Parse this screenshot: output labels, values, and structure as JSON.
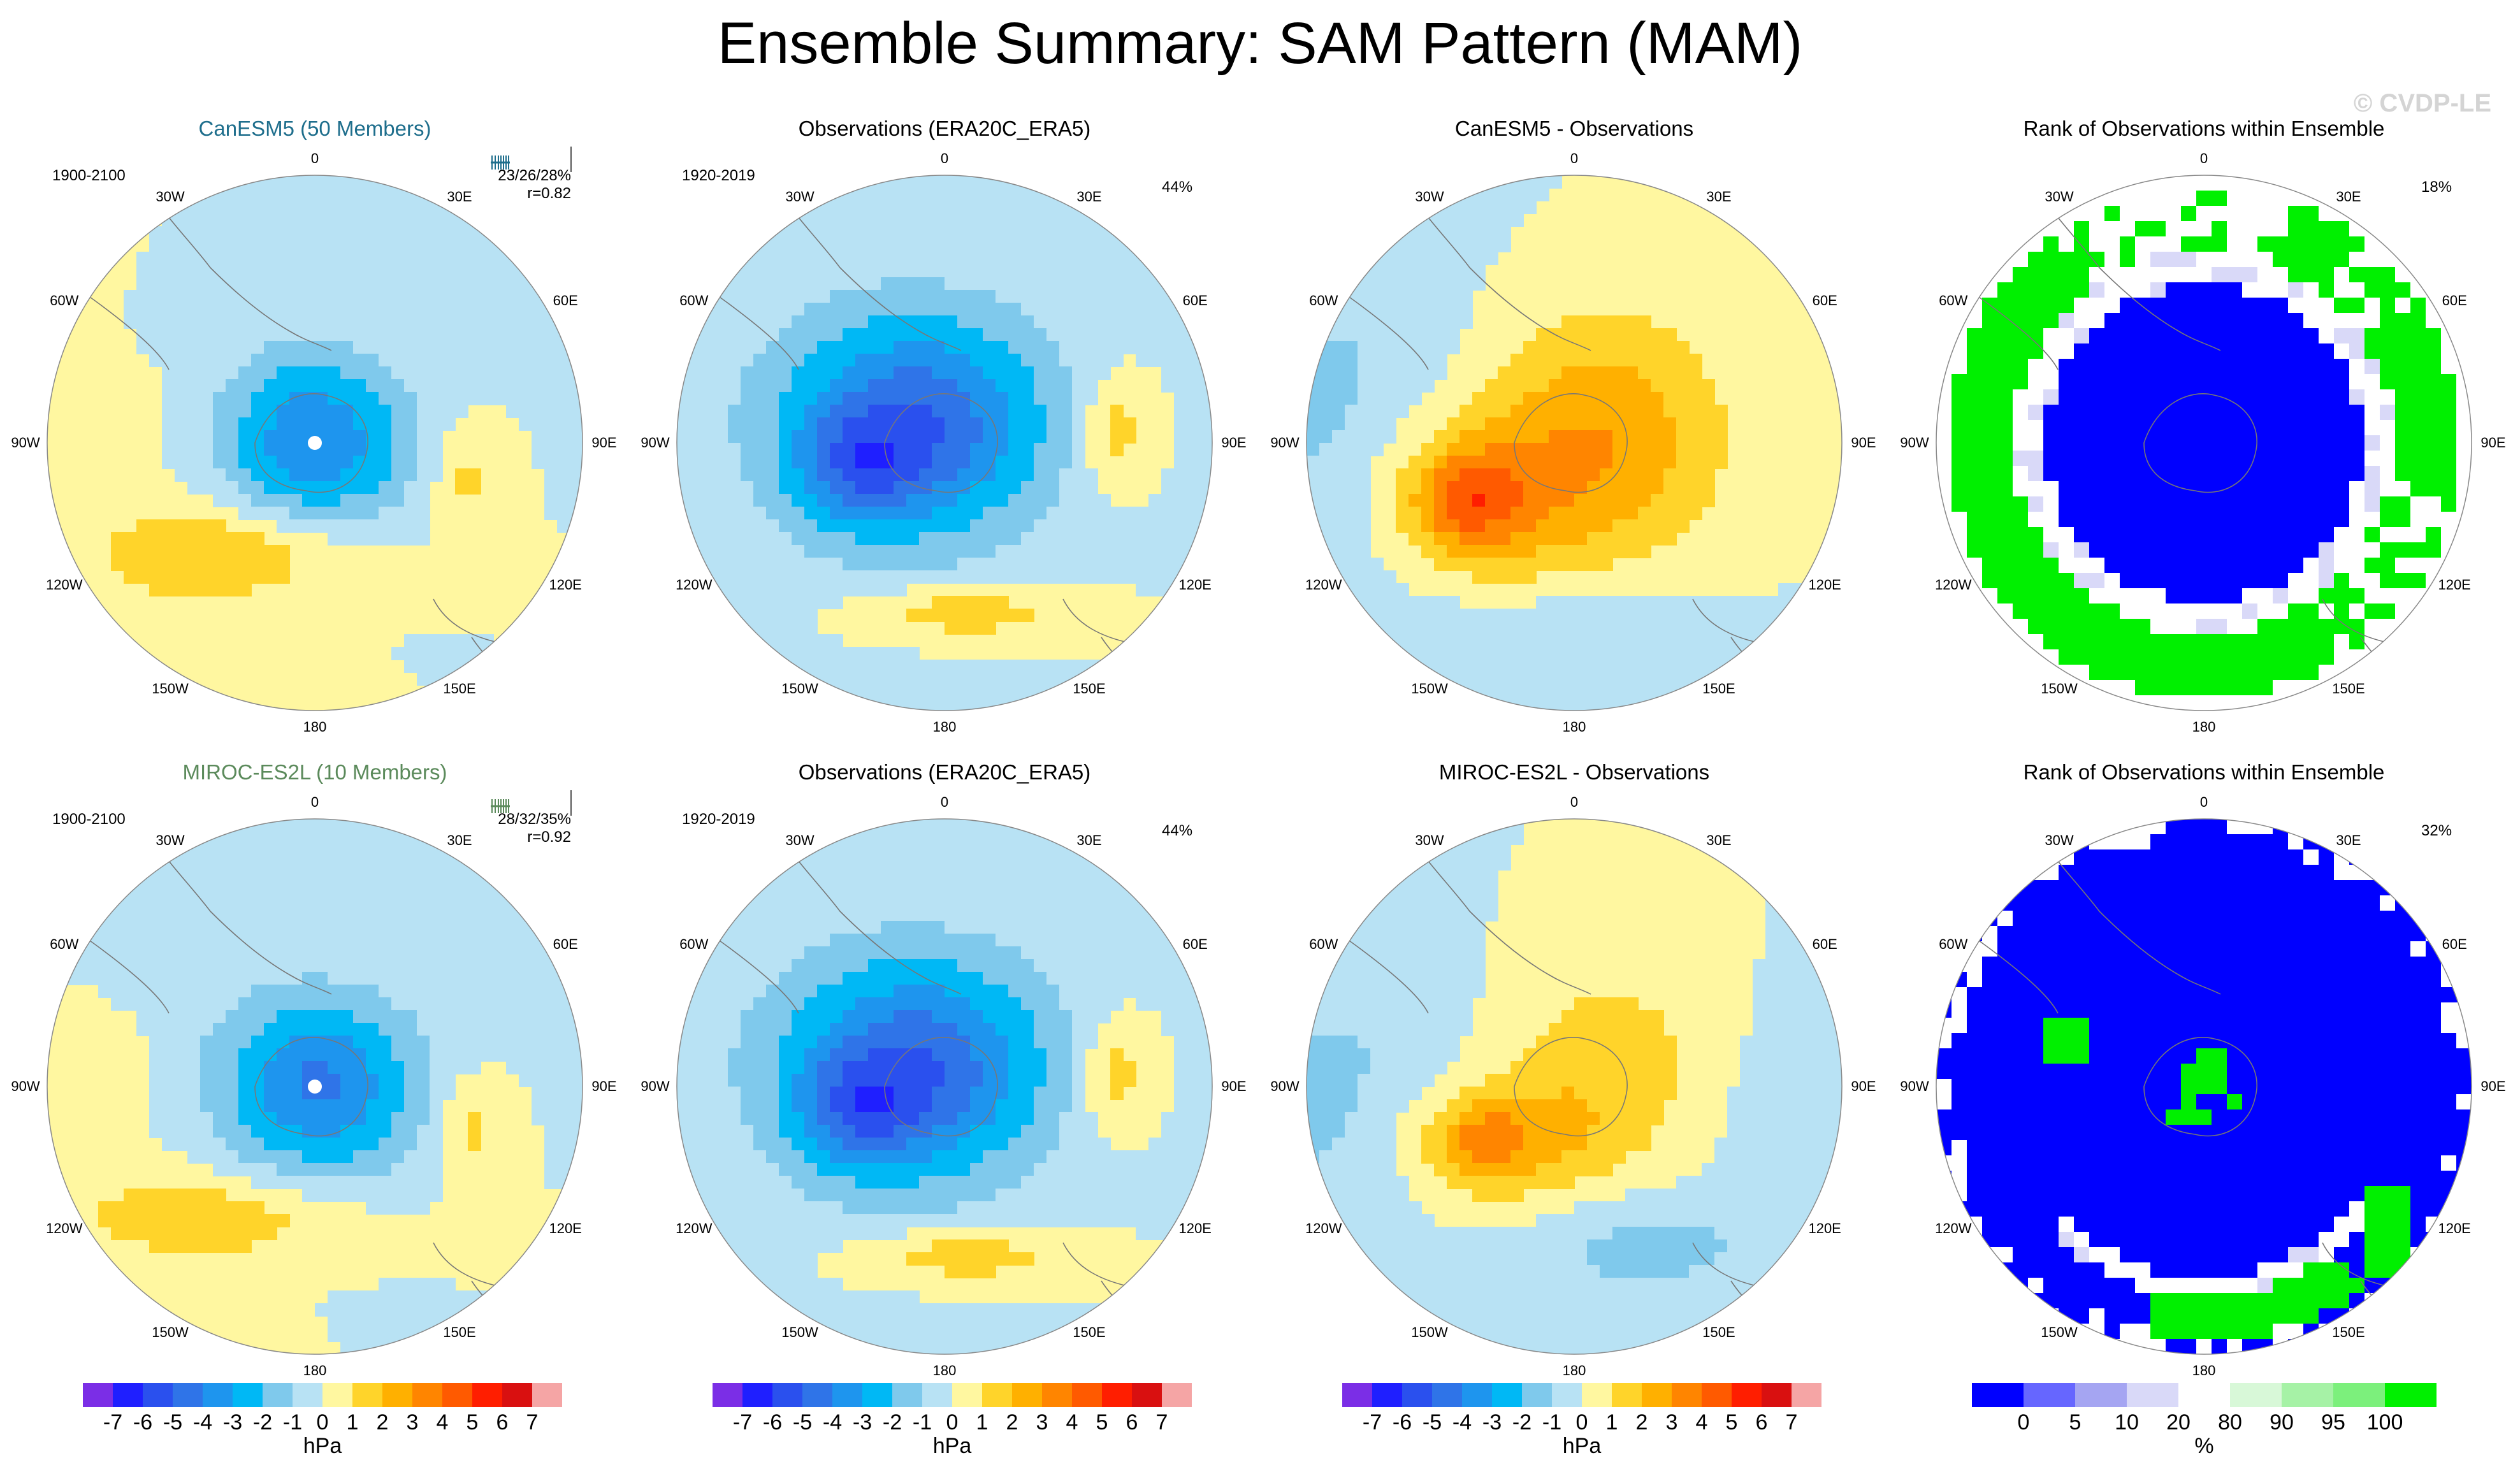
{
  "title": "Ensemble Summary: SAM Pattern (MAM)",
  "watermark": "© CVDP-LE",
  "lon_labels": [
    "0",
    "30E",
    "60E",
    "90E",
    "120E",
    "150E",
    "180",
    "150W",
    "120W",
    "90W",
    "60W",
    "30W"
  ],
  "panels": [
    {
      "title": "CanESM5 (50 Members)",
      "title_color": "#1e6e8c",
      "period": "1900-2100",
      "stat1": "23/26/28%",
      "stat2": "r=0.82",
      "kind": "model"
    },
    {
      "title": "Observations (ERA20C_ERA5)",
      "title_color": "#000000",
      "period": "1920-2019",
      "pct": "44%",
      "kind": "obs"
    },
    {
      "title": "CanESM5 - Observations",
      "title_color": "#000000",
      "kind": "diff"
    },
    {
      "title": "Rank of Observations within Ensemble",
      "title_color": "#000000",
      "pct": "18%",
      "kind": "rank"
    },
    {
      "title": "MIROC-ES2L (10 Members)",
      "title_color": "#5b8a5b",
      "period": "1900-2100",
      "stat1": "28/32/35%",
      "stat2": "r=0.92",
      "kind": "model"
    },
    {
      "title": "Observations (ERA20C_ERA5)",
      "title_color": "#000000",
      "period": "1920-2019",
      "pct": "44%",
      "kind": "obs"
    },
    {
      "title": "MIROC-ES2L - Observations",
      "title_color": "#000000",
      "kind": "diff"
    },
    {
      "title": "Rank of Observations within Ensemble",
      "title_color": "#000000",
      "pct": "32%",
      "kind": "rank"
    }
  ],
  "colorbars": [
    {
      "unit": "hPa",
      "labels": [
        "-7",
        "-6",
        "-5",
        "-4",
        "-3",
        "-2",
        "-1",
        "0",
        "1",
        "2",
        "3",
        "4",
        "5",
        "6",
        "7"
      ],
      "colors": [
        "#7b2ee6",
        "#1f1fff",
        "#2a50ee",
        "#2f74e8",
        "#1e95ee",
        "#00b8f5",
        "#7fc9ec",
        "#b8e2f4",
        "#fff7a0",
        "#ffd42a",
        "#ffb000",
        "#ff8500",
        "#ff5a00",
        "#ff1e00",
        "#d91010",
        "#f5a5a5"
      ]
    },
    {
      "unit": "hPa",
      "labels": [
        "-7",
        "-6",
        "-5",
        "-4",
        "-3",
        "-2",
        "-1",
        "0",
        "1",
        "2",
        "3",
        "4",
        "5",
        "6",
        "7"
      ],
      "colors": [
        "#7b2ee6",
        "#1f1fff",
        "#2a50ee",
        "#2f74e8",
        "#1e95ee",
        "#00b8f5",
        "#7fc9ec",
        "#b8e2f4",
        "#fff7a0",
        "#ffd42a",
        "#ffb000",
        "#ff8500",
        "#ff5a00",
        "#ff1e00",
        "#d91010",
        "#f5a5a5"
      ]
    },
    {
      "unit": "hPa",
      "labels": [
        "-7",
        "-6",
        "-5",
        "-4",
        "-3",
        "-2",
        "-1",
        "0",
        "1",
        "2",
        "3",
        "4",
        "5",
        "6",
        "7"
      ],
      "colors": [
        "#7b2ee6",
        "#1f1fff",
        "#2a50ee",
        "#2f74e8",
        "#1e95ee",
        "#00b8f5",
        "#7fc9ec",
        "#b8e2f4",
        "#fff7a0",
        "#ffd42a",
        "#ffb000",
        "#ff8500",
        "#ff5a00",
        "#ff1e00",
        "#d91010",
        "#f5a5a5"
      ]
    },
    {
      "unit": "%",
      "labels": [
        "0",
        "5",
        "10",
        "20",
        "80",
        "90",
        "95",
        "100"
      ],
      "colors": [
        "#0000ff",
        "#6666ff",
        "#a5a5f2",
        "#d9d9f8",
        "#ffffff",
        "#d8f8d8",
        "#a6f2a6",
        "#7cf07c",
        "#00f000"
      ]
    }
  ],
  "chart_data": {
    "type": "polar contour maps (8 panels)",
    "variable": "SAM pattern sea level pressure anomaly",
    "units": "hPa",
    "contour_levels": [
      -7,
      -6,
      -5,
      -4,
      -3,
      -2,
      -1,
      0,
      1,
      2,
      3,
      4,
      5,
      6,
      7
    ],
    "rank_levels_percent": [
      0,
      5,
      10,
      20,
      80,
      90,
      95,
      100
    ],
    "panels": [
      {
        "name": "CanESM5 (50 Members)",
        "min_hPa": -4,
        "max_hPa": 2,
        "pattern_correlation": 0.82
      },
      {
        "name": "Observations (ERA20C_ERA5)",
        "min_hPa": -6,
        "max_hPa": 2,
        "explained_variance": "44%"
      },
      {
        "name": "CanESM5 - Observations",
        "min_hPa": -1,
        "max_hPa": 5
      },
      {
        "name": "Rank of Observations within Ensemble",
        "area_percent": "18%"
      },
      {
        "name": "MIROC-ES2L (10 Members)",
        "min_hPa": -4,
        "max_hPa": 2,
        "pattern_correlation": 0.92
      },
      {
        "name": "Observations (ERA20C_ERA5)",
        "min_hPa": -6,
        "max_hPa": 2,
        "explained_variance": "44%"
      },
      {
        "name": "MIROC-ES2L - Observations",
        "min_hPa": -1,
        "max_hPa": 4
      },
      {
        "name": "Rank of Observations within Ensemble",
        "area_percent": "32%"
      }
    ]
  }
}
